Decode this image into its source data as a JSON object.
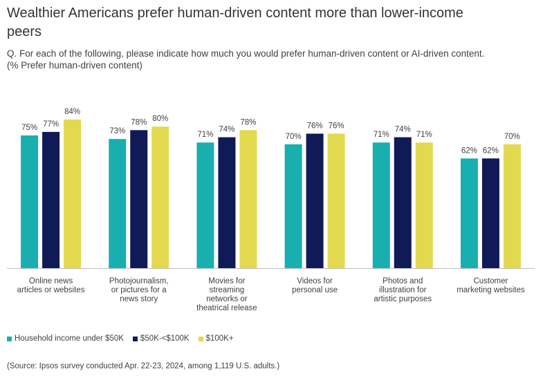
{
  "title": "Wealthier Americans  prefer human-driven  content more than lower-income peers",
  "subtitle": "Q. For each of the following, please indicate how much you would prefer human-driven content or AI-driven content. (% Prefer human-driven content)",
  "source": "(Source: Ipsos survey conducted Apr. 22-23, 2024, among 1,119 U.S. adults.)",
  "chart_data": {
    "type": "bar",
    "categories": [
      [
        "Online news",
        "articles or websites"
      ],
      [
        "Photojournalism,",
        "or pictures for a",
        "news story"
      ],
      [
        "Movies for",
        "streaming",
        "networks or",
        "theatrical release"
      ],
      [
        "Videos for",
        "personal use"
      ],
      [
        "Photos and",
        "illustration for",
        "artistic purposes"
      ],
      [
        "Customer",
        "marketing websites"
      ]
    ],
    "series": [
      {
        "name": "Household income under $50K",
        "color": "#1AAFAF",
        "values": [
          75,
          73,
          71,
          70,
          71,
          62
        ]
      },
      {
        "name": "$50K-<$100K",
        "color": "#101A56",
        "values": [
          77,
          78,
          74,
          76,
          74,
          62
        ]
      },
      {
        "name": "$100K+",
        "color": "#E2D94F",
        "values": [
          84,
          80,
          78,
          76,
          71,
          70
        ]
      }
    ],
    "ylim": [
      0,
      100
    ],
    "value_suffix": "%",
    "grid": false,
    "legend_position": "bottom-left"
  }
}
